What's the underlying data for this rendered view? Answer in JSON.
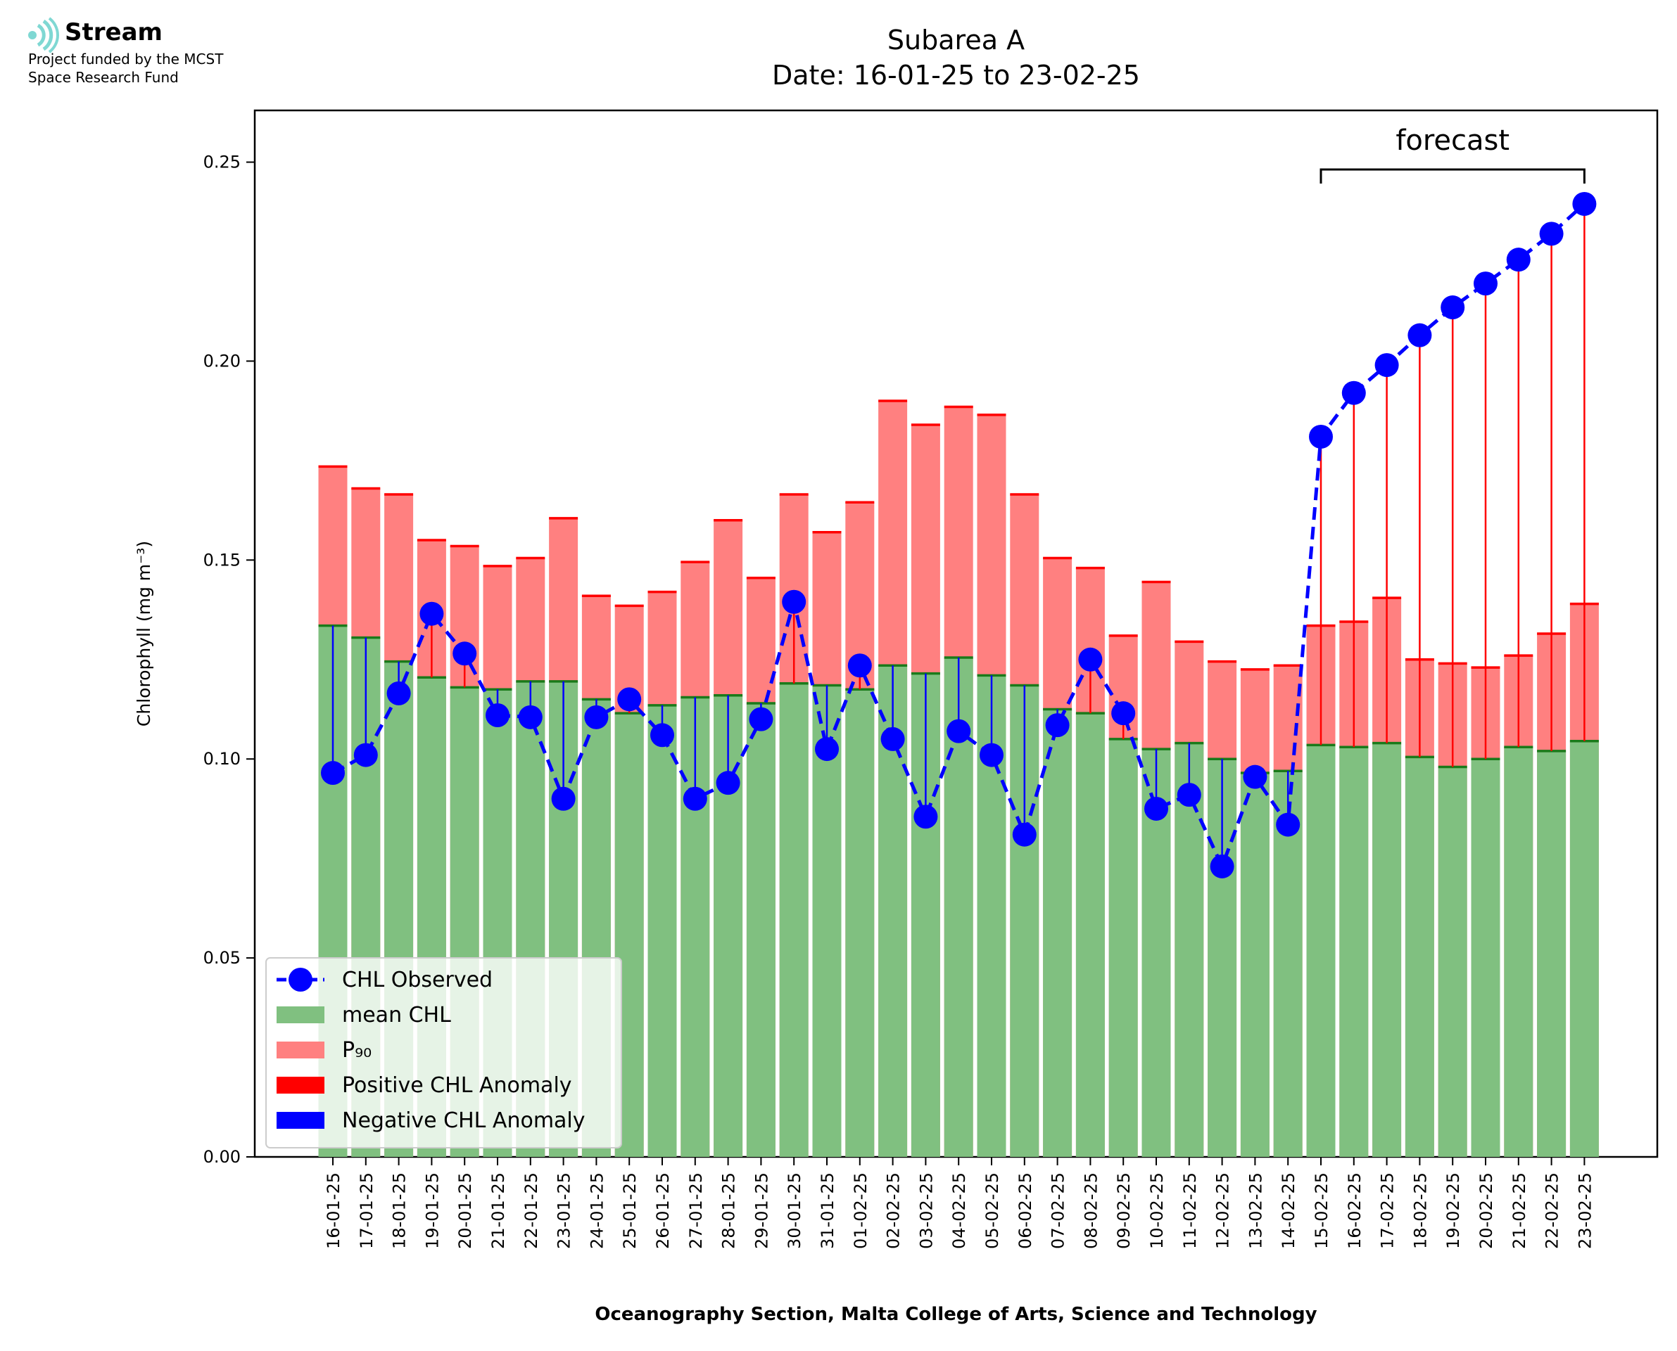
{
  "branding": {
    "name": "Stream",
    "line1": "Project funded by the MCST",
    "line2": "Space Research Fund",
    "logo_icon": "stream-wave-icon",
    "logo_color": "#7fd8d3"
  },
  "colors": {
    "mean": "#80c080",
    "mean_edge": "#1a7a1a",
    "p90": "#ff8080",
    "p90_edge": "#ff0000",
    "positive": "#ff0000",
    "negative": "#0000ff",
    "observed": "#0000ff"
  },
  "chart_data": {
    "type": "bar",
    "title": "Subarea A",
    "subtitle": "Date: 16-01-25 to 23-02-25",
    "xlabel": "Oceanography Section, Malta College of Arts, Science and Technology",
    "ylabel": "Chlorophyll (mg m⁻³)",
    "ylim": [
      0,
      0.263
    ],
    "yticks": [
      0.0,
      0.05,
      0.1,
      0.15,
      0.2,
      0.25
    ],
    "ytick_labels": [
      "0.00",
      "0.05",
      "0.10",
      "0.15",
      "0.20",
      "0.25"
    ],
    "grid": false,
    "legend_position": "lower-left",
    "annotation": {
      "text": "forecast",
      "from": "15-02-25",
      "to": "23-02-25"
    },
    "categories": [
      "16-01-25",
      "17-01-25",
      "18-01-25",
      "19-01-25",
      "20-01-25",
      "21-01-25",
      "22-01-25",
      "23-01-25",
      "24-01-25",
      "25-01-25",
      "26-01-25",
      "27-01-25",
      "28-01-25",
      "29-01-25",
      "30-01-25",
      "31-01-25",
      "01-02-25",
      "02-02-25",
      "03-02-25",
      "04-02-25",
      "05-02-25",
      "06-02-25",
      "07-02-25",
      "08-02-25",
      "09-02-25",
      "10-02-25",
      "11-02-25",
      "12-02-25",
      "13-02-25",
      "14-02-25",
      "15-02-25",
      "16-02-25",
      "17-02-25",
      "18-02-25",
      "19-02-25",
      "20-02-25",
      "21-02-25",
      "22-02-25",
      "23-02-25"
    ],
    "series": [
      {
        "name": "CHL Observed",
        "kind": "line-markers",
        "values": [
          0.0965,
          0.101,
          0.1165,
          0.1365,
          0.1265,
          0.111,
          0.1105,
          0.09,
          0.1105,
          0.115,
          0.106,
          0.09,
          0.094,
          0.11,
          0.1395,
          0.1025,
          0.1235,
          0.105,
          0.0855,
          0.107,
          0.101,
          0.081,
          0.1085,
          0.125,
          0.1115,
          0.0875,
          0.091,
          0.073,
          0.0955,
          0.0835,
          0.181,
          0.192,
          0.199,
          0.2065,
          0.2135,
          0.2195,
          0.2255,
          0.232,
          0.2395
        ]
      },
      {
        "name": "mean CHL",
        "kind": "bar",
        "values": [
          0.1335,
          0.1305,
          0.1245,
          0.1205,
          0.118,
          0.1175,
          0.1195,
          0.1195,
          0.115,
          0.1115,
          0.1135,
          0.1155,
          0.116,
          0.114,
          0.119,
          0.1185,
          0.1175,
          0.1235,
          0.1215,
          0.1255,
          0.121,
          0.1185,
          0.1125,
          0.1115,
          0.105,
          0.1025,
          0.104,
          0.1,
          0.0965,
          0.097,
          0.1035,
          0.103,
          0.104,
          0.1005,
          0.098,
          0.1,
          0.103,
          0.102,
          0.1045
        ]
      },
      {
        "name": "P₉₀",
        "kind": "bar",
        "values": [
          0.1735,
          0.168,
          0.1665,
          0.155,
          0.1535,
          0.1485,
          0.1505,
          0.1605,
          0.141,
          0.1385,
          0.142,
          0.1495,
          0.16,
          0.1455,
          0.1665,
          0.157,
          0.1645,
          0.19,
          0.184,
          0.1885,
          0.1865,
          0.1665,
          0.1505,
          0.148,
          0.131,
          0.1445,
          0.1295,
          0.1245,
          0.1225,
          0.1235,
          0.1335,
          0.1345,
          0.1405,
          0.125,
          0.124,
          0.123,
          0.126,
          0.1315,
          0.139
        ]
      },
      {
        "name": "Positive CHL Anomaly",
        "kind": "legend-only"
      },
      {
        "name": "Negative CHL Anomaly",
        "kind": "legend-only"
      }
    ]
  }
}
